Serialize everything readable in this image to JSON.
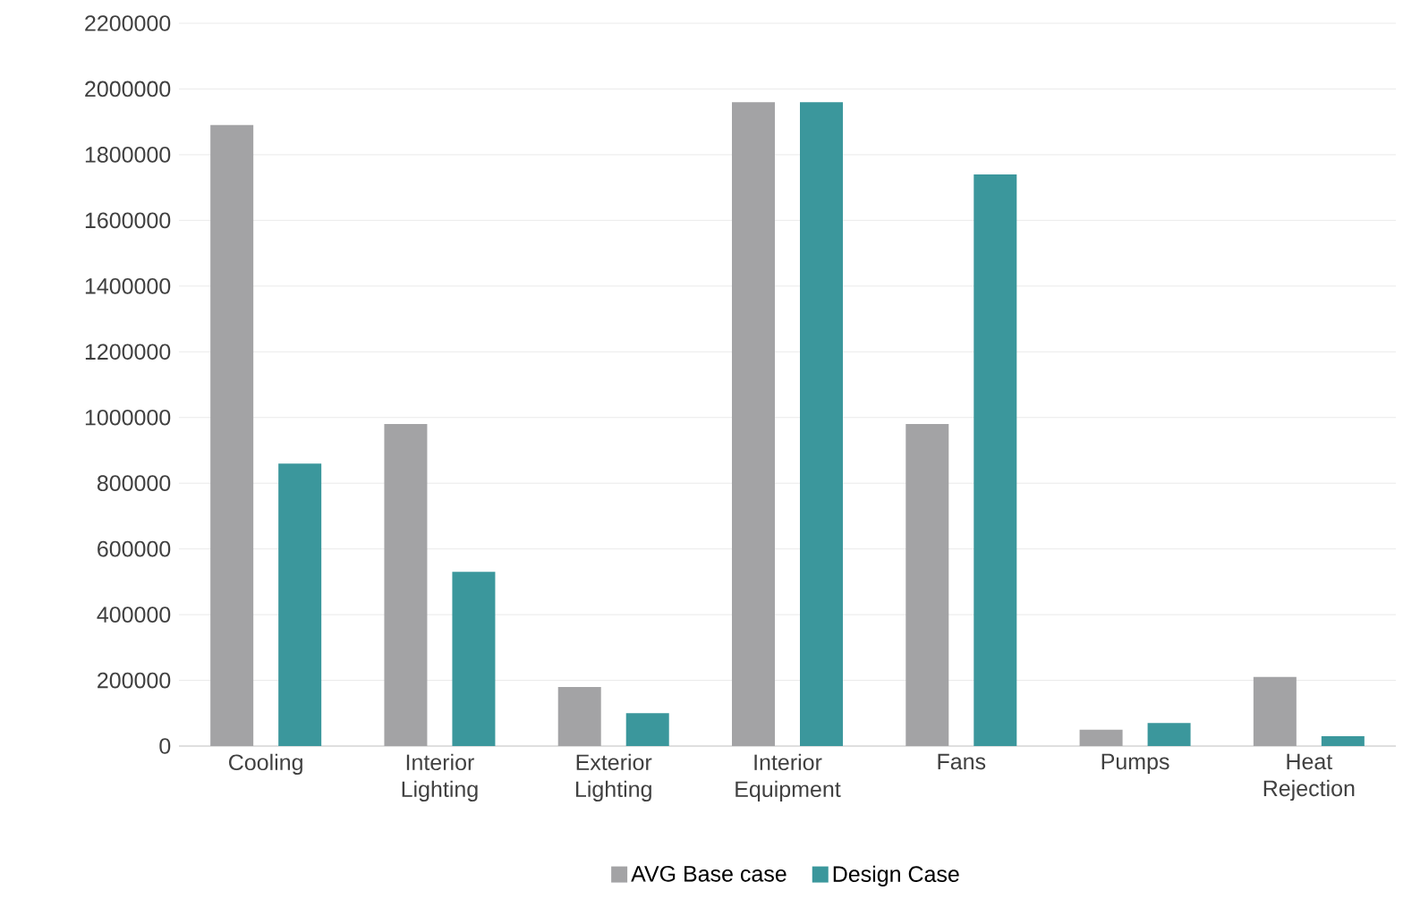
{
  "chart_data": {
    "type": "bar",
    "categories": [
      "Cooling",
      "Interior Lighting",
      "Exterior Lighting",
      "Interior Equipment",
      "Fans",
      "Pumps",
      "Heat Rejection"
    ],
    "series": [
      {
        "name": "AVG Base case",
        "color": "#a3a3a5",
        "values": [
          1890000,
          980000,
          180000,
          1960000,
          980000,
          50000,
          210000
        ]
      },
      {
        "name": "Design Case",
        "color": "#3b979c",
        "values": [
          860000,
          530000,
          100000,
          1960000,
          1740000,
          70000,
          30000
        ]
      }
    ],
    "ylim": [
      0,
      2200000
    ],
    "yticks": [
      0,
      200000,
      400000,
      600000,
      800000,
      1000000,
      1200000,
      1400000,
      1600000,
      1800000,
      2000000,
      2200000
    ],
    "grid": "y",
    "legend": "bottom"
  }
}
